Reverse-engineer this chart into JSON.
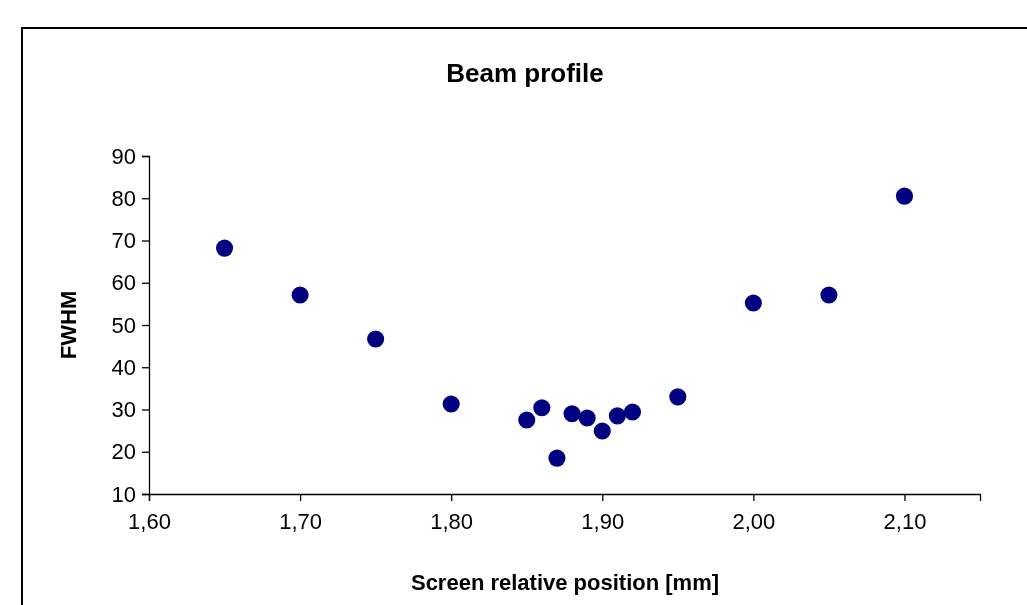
{
  "chart_data": {
    "type": "scatter",
    "title": "Beam profile",
    "xlabel": "Screen relative position [mm]",
    "ylabel": "FWHM",
    "x": [
      1.65,
      1.7,
      1.75,
      1.8,
      1.85,
      1.86,
      1.87,
      1.88,
      1.89,
      1.9,
      1.91,
      1.92,
      1.95,
      2.0,
      2.05,
      2.1
    ],
    "series": [
      {
        "color": "#000080",
        "values": [
          68.2,
          57.1,
          46.7,
          31.3,
          27.5,
          30.4,
          18.5,
          29,
          28,
          24.9,
          28.5,
          29.4,
          33,
          55.2,
          57.1,
          80.5
        ]
      }
    ],
    "xlim": [
      1.6,
      2.15
    ],
    "xticks": [
      {
        "value": 1.6,
        "label": "1,60"
      },
      {
        "value": 1.7,
        "label": "1,70"
      },
      {
        "value": 1.8,
        "label": "1,80"
      },
      {
        "value": 1.9,
        "label": "1,90"
      },
      {
        "value": 2.0,
        "label": "2,00"
      },
      {
        "value": 2.1,
        "label": "2,10"
      }
    ],
    "ylim": [
      10,
      90
    ],
    "yticks": [
      10,
      20,
      30,
      40,
      50,
      60,
      70,
      80,
      90
    ],
    "grid": false,
    "marker": "circle"
  }
}
